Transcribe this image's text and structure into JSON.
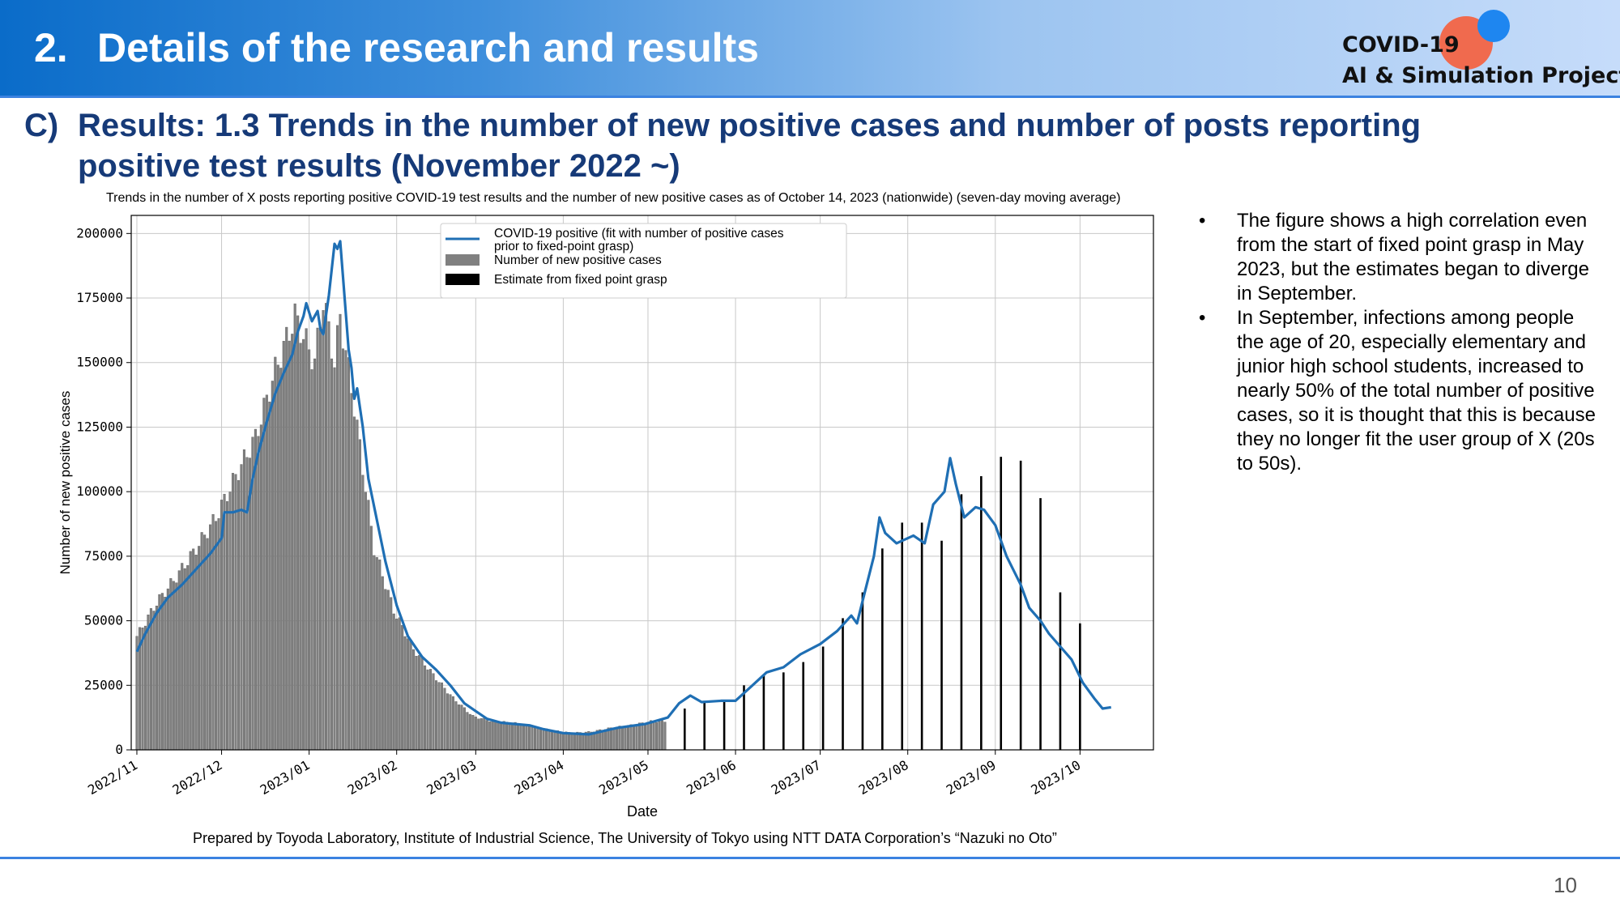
{
  "header": {
    "number": "2.",
    "title": "Details of the research and results"
  },
  "logo": {
    "line1": "COVID-19",
    "line2": "AI & Simulation Project",
    "colors": {
      "red_circle": "#f06a4e",
      "blue_circle": "#1e86f0"
    }
  },
  "section": {
    "marker": "C)",
    "title": "Results: 1.3 Trends in the number of new positive cases and number of posts reporting positive test results (November 2022 ~)"
  },
  "bullets": [
    "The figure shows a high correlation even from the start of fixed point grasp in May 2023, but the estimates began to diverge in September.",
    "In September, infections among people the age of 20, especially elementary and junior high school students, increased to nearly 50% of the total number of positive cases, so it is thought that this is because they no longer fit the user group of X (20s to 50s)."
  ],
  "bullet_symbol": "•",
  "footer_note": "Prepared by Toyoda Laboratory, Institute of Industrial Science, The University of Tokyo using NTT DATA Corporation’s “Nazuki no Oto”",
  "page_number": "10",
  "chart_data": {
    "type": "bar",
    "title": "Trends in the number of X posts reporting positive COVID-19 test results and the number of new positive cases as of October 14, 2023 (nationwide) (seven-day moving average)",
    "xlabel": "Date",
    "ylabel": "Number of new positive cases",
    "ylim": [
      0,
      207000
    ],
    "xlim": [
      "2022-10-30",
      "2023-10-27"
    ],
    "y_ticks": [
      0,
      25000,
      50000,
      75000,
      100000,
      125000,
      150000,
      175000,
      200000
    ],
    "x_ticks": [
      "2022/11",
      "2022/12",
      "2023/01",
      "2023/02",
      "2023/03",
      "2023/04",
      "2023/05",
      "2023/06",
      "2023/07",
      "2023/08",
      "2023/09",
      "2023/10"
    ],
    "x_tick_dates": [
      "2022-11-01",
      "2022-12-01",
      "2023-01-01",
      "2023-02-01",
      "2023-03-01",
      "2023-04-01",
      "2023-05-01",
      "2023-06-01",
      "2023-07-01",
      "2023-08-01",
      "2023-09-01",
      "2023-10-01"
    ],
    "grid": true,
    "legend_position": "top-center",
    "colors": {
      "line": "#1f6fb4",
      "gray_bars": "#808080",
      "black_bars": "#000000"
    },
    "series": [
      {
        "name": "COVID-19 positive (fit with number of positive cases prior to fixed-point grasp)",
        "type": "line",
        "points": [
          [
            "2022-11-01",
            38000
          ],
          [
            "2022-11-04",
            45000
          ],
          [
            "2022-11-08",
            53000
          ],
          [
            "2022-11-12",
            59000
          ],
          [
            "2022-11-17",
            64000
          ],
          [
            "2022-11-22",
            70000
          ],
          [
            "2022-11-27",
            76000
          ],
          [
            "2022-12-01",
            82000
          ],
          [
            "2022-12-02",
            92000
          ],
          [
            "2022-12-05",
            92000
          ],
          [
            "2022-12-08",
            93000
          ],
          [
            "2022-12-10",
            92000
          ],
          [
            "2022-12-12",
            105000
          ],
          [
            "2022-12-14",
            115000
          ],
          [
            "2022-12-17",
            127000
          ],
          [
            "2022-12-20",
            138000
          ],
          [
            "2022-12-23",
            146000
          ],
          [
            "2022-12-26",
            153000
          ],
          [
            "2022-12-28",
            162000
          ],
          [
            "2022-12-30",
            168000
          ],
          [
            "2022-12-31",
            173000
          ],
          [
            "2023-01-02",
            166000
          ],
          [
            "2023-01-04",
            170000
          ],
          [
            "2023-01-05",
            163000
          ],
          [
            "2023-01-06",
            161000
          ],
          [
            "2023-01-08",
            176000
          ],
          [
            "2023-01-10",
            196000
          ],
          [
            "2023-01-11",
            194000
          ],
          [
            "2023-01-12",
            197000
          ],
          [
            "2023-01-13",
            183000
          ],
          [
            "2023-01-15",
            155000
          ],
          [
            "2023-01-16",
            148000
          ],
          [
            "2023-01-17",
            136000
          ],
          [
            "2023-01-18",
            140000
          ],
          [
            "2023-01-20",
            125000
          ],
          [
            "2023-01-22",
            105000
          ],
          [
            "2023-01-25",
            89000
          ],
          [
            "2023-01-28",
            73000
          ],
          [
            "2023-02-01",
            56000
          ],
          [
            "2023-02-05",
            44000
          ],
          [
            "2023-02-10",
            36000
          ],
          [
            "2023-02-15",
            31000
          ],
          [
            "2023-02-20",
            25000
          ],
          [
            "2023-02-25",
            18000
          ],
          [
            "2023-03-01",
            15000
          ],
          [
            "2023-03-05",
            12000
          ],
          [
            "2023-03-10",
            10500
          ],
          [
            "2023-03-15",
            10000
          ],
          [
            "2023-03-20",
            9500
          ],
          [
            "2023-03-25",
            8000
          ],
          [
            "2023-04-01",
            6500
          ],
          [
            "2023-04-10",
            6000
          ],
          [
            "2023-04-20",
            8500
          ],
          [
            "2023-04-30",
            10000
          ],
          [
            "2023-05-08",
            12500
          ],
          [
            "2023-05-12",
            18000
          ],
          [
            "2023-05-16",
            21000
          ],
          [
            "2023-05-20",
            18500
          ],
          [
            "2023-05-27",
            19000
          ],
          [
            "2023-06-01",
            19000
          ],
          [
            "2023-06-07",
            25000
          ],
          [
            "2023-06-12",
            30000
          ],
          [
            "2023-06-18",
            32000
          ],
          [
            "2023-06-24",
            37000
          ],
          [
            "2023-07-01",
            41000
          ],
          [
            "2023-07-07",
            46000
          ],
          [
            "2023-07-12",
            52000
          ],
          [
            "2023-07-14",
            49000
          ],
          [
            "2023-07-17",
            62000
          ],
          [
            "2023-07-20",
            75000
          ],
          [
            "2023-07-22",
            90000
          ],
          [
            "2023-07-24",
            84000
          ],
          [
            "2023-07-28",
            80000
          ],
          [
            "2023-08-03",
            83000
          ],
          [
            "2023-08-07",
            80000
          ],
          [
            "2023-08-10",
            95000
          ],
          [
            "2023-08-14",
            100000
          ],
          [
            "2023-08-16",
            113000
          ],
          [
            "2023-08-18",
            103000
          ],
          [
            "2023-08-21",
            90000
          ],
          [
            "2023-08-25",
            94000
          ],
          [
            "2023-08-28",
            93000
          ],
          [
            "2023-09-01",
            87000
          ],
          [
            "2023-09-05",
            75000
          ],
          [
            "2023-09-10",
            64000
          ],
          [
            "2023-09-13",
            55000
          ],
          [
            "2023-09-17",
            50000
          ],
          [
            "2023-09-20",
            45000
          ],
          [
            "2023-09-24",
            40000
          ],
          [
            "2023-09-28",
            35000
          ],
          [
            "2023-10-02",
            26000
          ],
          [
            "2023-10-06",
            20000
          ],
          [
            "2023-10-09",
            16000
          ],
          [
            "2023-10-12",
            16500
          ]
        ]
      },
      {
        "name": "Number of new positive cases",
        "type": "bar",
        "note": "daily values, 2022-11-01 to 2023-05-07",
        "points": [
          [
            "2022-11-01",
            44000
          ],
          [
            "2022-11-08",
            57000
          ],
          [
            "2022-11-15",
            67000
          ],
          [
            "2022-11-22",
            78000
          ],
          [
            "2022-11-29",
            90000
          ],
          [
            "2022-12-06",
            106000
          ],
          [
            "2022-12-13",
            121000
          ],
          [
            "2022-12-20",
            147000
          ],
          [
            "2022-12-27",
            168000
          ],
          [
            "2023-01-03",
            150000
          ],
          [
            "2023-01-06",
            175000
          ],
          [
            "2023-01-10",
            150000
          ],
          [
            "2023-01-12",
            168000
          ],
          [
            "2023-01-17",
            133000
          ],
          [
            "2023-01-24",
            78000
          ],
          [
            "2023-01-31",
            54000
          ],
          [
            "2023-02-07",
            39000
          ],
          [
            "2023-02-14",
            29000
          ],
          [
            "2023-02-21",
            20000
          ],
          [
            "2023-02-28",
            13000
          ],
          [
            "2023-03-07",
            11000
          ],
          [
            "2023-03-14",
            10500
          ],
          [
            "2023-03-21",
            9000
          ],
          [
            "2023-03-28",
            7500
          ],
          [
            "2023-04-04",
            6500
          ],
          [
            "2023-04-11",
            7000
          ],
          [
            "2023-04-18",
            8500
          ],
          [
            "2023-04-25",
            9500
          ],
          [
            "2023-05-02",
            11000
          ],
          [
            "2023-05-07",
            11000
          ]
        ]
      },
      {
        "name": "Estimate from fixed point grasp",
        "type": "bar",
        "points": [
          [
            "2023-05-14",
            16000
          ],
          [
            "2023-05-21",
            19000
          ],
          [
            "2023-05-28",
            18500
          ],
          [
            "2023-06-04",
            25000
          ],
          [
            "2023-06-11",
            29000
          ],
          [
            "2023-06-18",
            30000
          ],
          [
            "2023-06-25",
            34000
          ],
          [
            "2023-07-02",
            40000
          ],
          [
            "2023-07-09",
            51000
          ],
          [
            "2023-07-16",
            61000
          ],
          [
            "2023-07-23",
            78000
          ],
          [
            "2023-07-30",
            88000
          ],
          [
            "2023-08-06",
            88000
          ],
          [
            "2023-08-13",
            81000
          ],
          [
            "2023-08-20",
            99000
          ],
          [
            "2023-08-27",
            106000
          ],
          [
            "2023-09-03",
            113500
          ],
          [
            "2023-09-10",
            112000
          ],
          [
            "2023-09-17",
            97500
          ],
          [
            "2023-09-24",
            61000
          ],
          [
            "2023-10-01",
            49000
          ]
        ]
      }
    ]
  }
}
